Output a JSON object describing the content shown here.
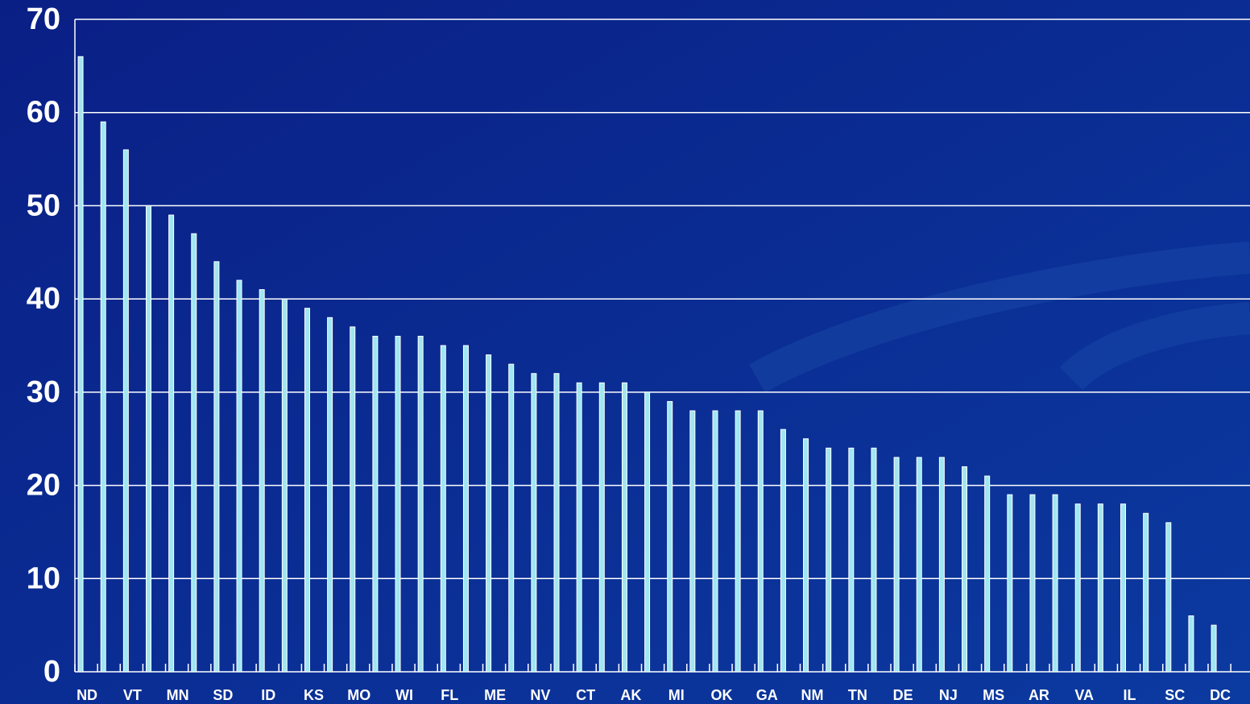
{
  "chart_data": {
    "type": "bar",
    "categories": [
      "ND",
      null,
      "VT",
      null,
      "MN",
      null,
      "SD",
      null,
      "ID",
      null,
      "KS",
      null,
      "MO",
      null,
      "WI",
      null,
      "FL",
      null,
      "ME",
      null,
      "NV",
      null,
      "CT",
      null,
      "AK",
      null,
      "MI",
      null,
      "OK",
      null,
      "GA",
      null,
      "NM",
      null,
      "TN",
      null,
      "DE",
      null,
      "NJ",
      null,
      "MS",
      null,
      "AR",
      null,
      "VA",
      null,
      "IL",
      null,
      "SC",
      null,
      "DC"
    ],
    "values": [
      66,
      59,
      56,
      50,
      49,
      47,
      44,
      42,
      41,
      40,
      39,
      38,
      37,
      36,
      36,
      36,
      35,
      35,
      34,
      33,
      32,
      32,
      31,
      31,
      31,
      30,
      29,
      28,
      28,
      28,
      28,
      26,
      25,
      24,
      24,
      24,
      23,
      23,
      23,
      22,
      21,
      19,
      19,
      19,
      18,
      18,
      18,
      17,
      16,
      6,
      5
    ],
    "color": "#9fe6f0",
    "ylim": [
      0,
      70
    ],
    "yticks": [
      0,
      10,
      20,
      30,
      40,
      50,
      60,
      70
    ],
    "grid": true
  }
}
